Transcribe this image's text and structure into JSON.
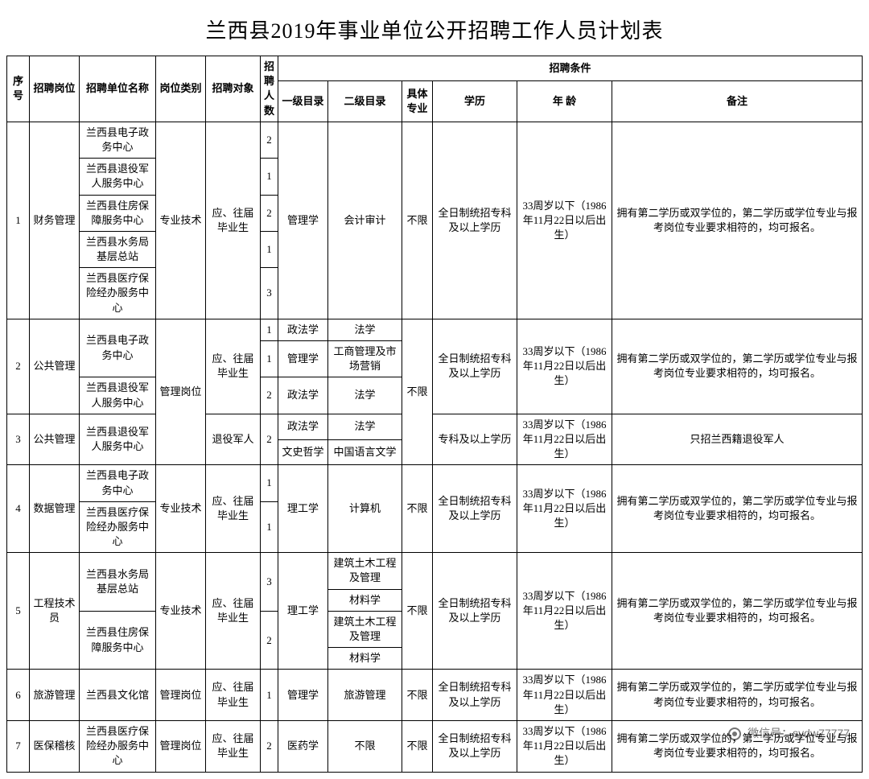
{
  "title": "兰西县2019年事业单位公开招聘工作人员计划表",
  "watermark": "微信号：sydw77777",
  "headers": {
    "seq": "序号",
    "pos": "招聘岗位",
    "unit": "招聘单位名称",
    "type": "岗位类别",
    "target": "招聘对象",
    "num": "招聘人数",
    "cond": "招聘条件",
    "cat1": "一级目录",
    "cat2": "二级目录",
    "spec": "具体专业",
    "edu": "学历",
    "age": "年 龄",
    "note": "备注"
  },
  "common": {
    "age33": "33周岁以下（1986年11月22日以后出生）",
    "note_dual": "拥有第二学历或双学位的，第二学历或学位专业与报考岗位专业要求相符的，均可报名。",
    "edu_full": "全日制统招专科及以上学历",
    "edu_zk": "专科及以上学历",
    "spec_any": "不限",
    "t_grad": "应、往届毕业生",
    "t_vet": "退役军人",
    "type_pro": "专业技术",
    "type_mgr": "管理岗位"
  },
  "rows": {
    "r1": {
      "seq": "1",
      "pos": "财务管理",
      "type": "专业技术",
      "target": "应、往届毕业生",
      "cat1": "管理学",
      "cat2": "会计审计",
      "spec": "不限",
      "edu": "全日制统招专科及以上学历"
    },
    "r1u": [
      "兰西县电子政务中心",
      "兰西县退役军人服务中心",
      "兰西县住房保障服务中心",
      "兰西县水务局基层总站",
      "兰西县医疗保险经办服务中心"
    ],
    "r1n": [
      "2",
      "1",
      "2",
      "1",
      "3"
    ],
    "r2": {
      "seq": "2",
      "pos": "公共管理",
      "target": "应、往届毕业生",
      "edu": "全日制统招专科及以上学历"
    },
    "r2u": [
      "兰西县电子政务中心",
      "兰西县退役军人服务中心"
    ],
    "r2n": [
      "1",
      "1",
      "2"
    ],
    "r2c1": [
      "政法学",
      "管理学",
      "政法学"
    ],
    "r2c2": [
      "法学",
      "工商管理及市场营销",
      "法学"
    ],
    "r3": {
      "seq": "3",
      "pos": "公共管理",
      "unit": "兰西县退役军人服务中心",
      "target": "退役军人",
      "num": "2",
      "edu": "专科及以上学历",
      "note": "只招兰西籍退役军人"
    },
    "r3c1": [
      "政法学",
      "文史哲学"
    ],
    "r3c2": [
      "法学",
      "中国语言文学"
    ],
    "r4": {
      "seq": "4",
      "pos": "数据管理",
      "type": "专业技术",
      "target": "应、往届毕业生",
      "cat1": "理工学",
      "cat2": "计算机",
      "spec": "不限",
      "edu": "全日制统招专科及以上学历"
    },
    "r4u": [
      "兰西县电子政务中心",
      "兰西县医疗保险经办服务中心"
    ],
    "r4n": [
      "1",
      "1"
    ],
    "r5": {
      "seq": "5",
      "pos": "工程技术员",
      "type": "专业技术",
      "target": "应、往届毕业生",
      "cat1": "理工学",
      "spec": "不限",
      "edu": "全日制统招专科及以上学历"
    },
    "r5u": [
      "兰西县水务局基层总站",
      "兰西县住房保障服务中心"
    ],
    "r5n": [
      "3",
      "2"
    ],
    "r5c2": [
      "建筑土木工程及管理",
      "材料学",
      "建筑土木工程及管理",
      "材料学"
    ],
    "r6": {
      "seq": "6",
      "pos": "旅游管理",
      "unit": "兰西县文化馆",
      "type": "管理岗位",
      "target": "应、往届毕业生",
      "num": "1",
      "cat1": "管理学",
      "cat2": "旅游管理",
      "spec": "不限",
      "edu": "全日制统招专科及以上学历"
    },
    "r7": {
      "seq": "7",
      "pos": "医保稽核",
      "unit": "兰西县医疗保险经办服务中心",
      "type": "管理岗位",
      "target": "应、往届毕业生",
      "num": "2",
      "cat1": "医药学",
      "cat2": "不限",
      "spec": "不限",
      "edu": "全日制统招专科及以上学历"
    }
  }
}
